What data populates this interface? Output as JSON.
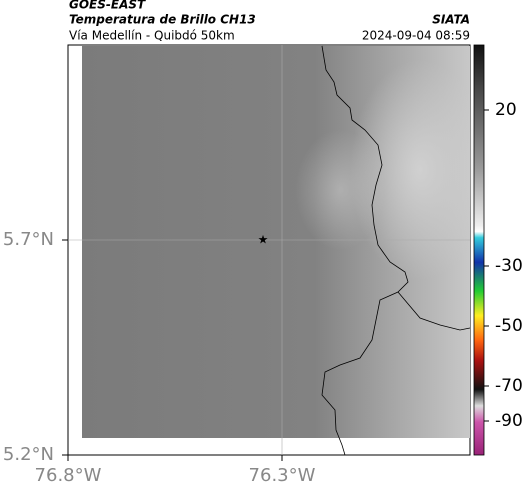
{
  "header": {
    "satellite": "GOES-EAST",
    "product": "Temperatura de Brillo CH13",
    "agency": "SIATA",
    "route": "Vía Medellín - Quibdó 50km",
    "datetime": "2024-09-04 08:59"
  },
  "map": {
    "lat_labels": [
      "5.7°N",
      "5.2°N"
    ],
    "lon_labels": [
      "76.8°W",
      "76.3°W"
    ]
  },
  "colorbar": {
    "ticks": [
      20,
      -30,
      -50,
      -70,
      -90
    ]
  }
}
